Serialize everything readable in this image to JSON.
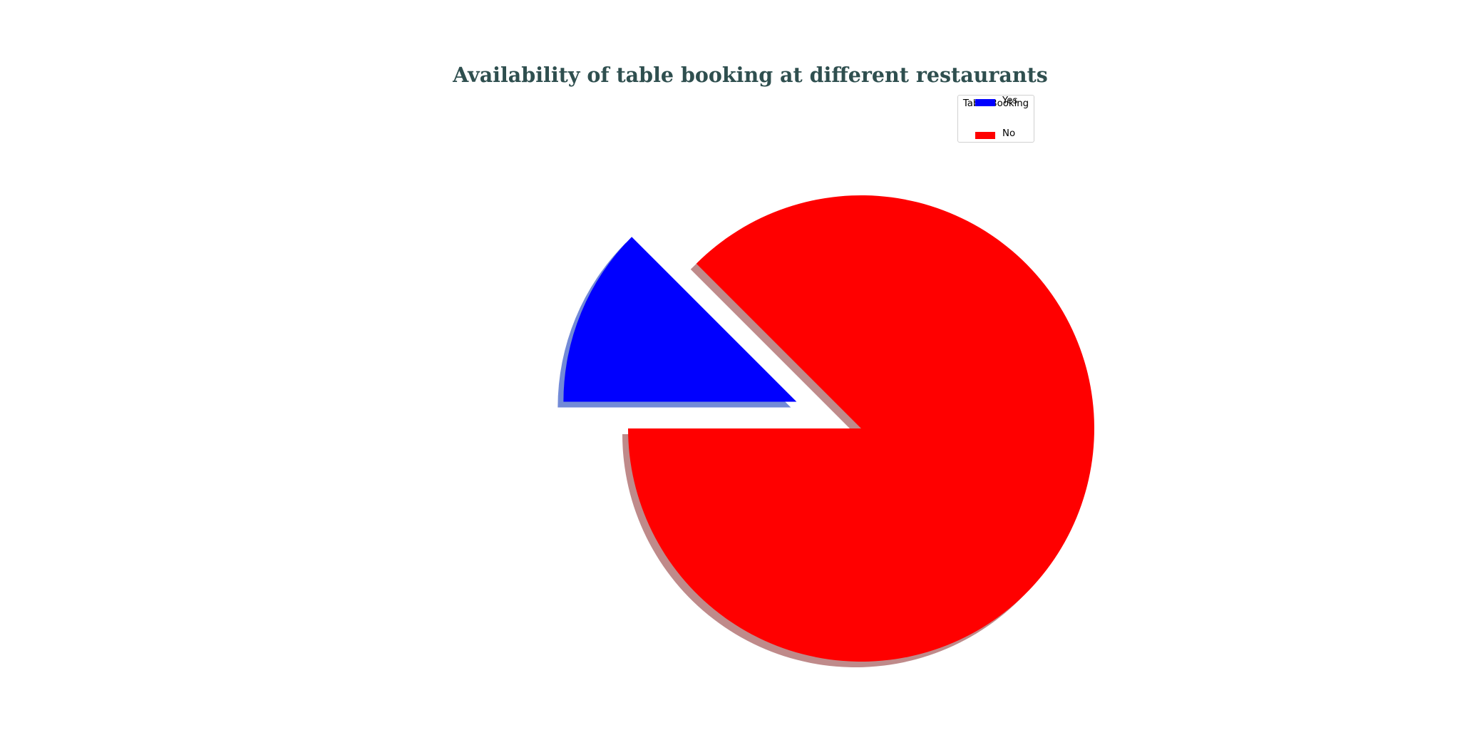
{
  "chart_data": {
    "type": "pie",
    "title": "Availability of table booking at different restaurants",
    "categories": [
      "No",
      "Yes"
    ],
    "values": [
      87.5,
      12.5
    ],
    "colors": [
      "#ff0000",
      "#0000ff"
    ],
    "explode": [
      0,
      0.3
    ],
    "shadow": true,
    "legend": {
      "title": "Table Booking",
      "placement": "top-right",
      "entries": [
        "No",
        "Yes"
      ]
    },
    "title_color": "#2f4f4f"
  }
}
